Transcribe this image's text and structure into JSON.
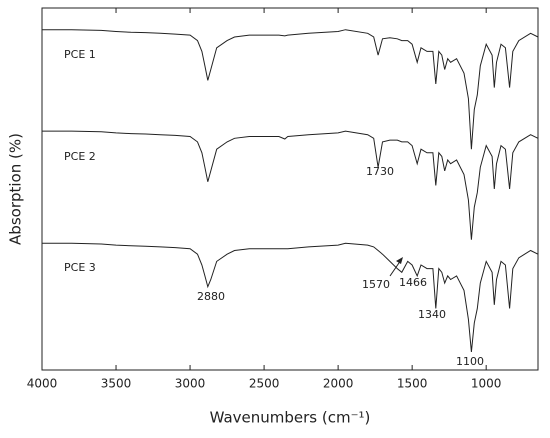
{
  "chart_data": {
    "type": "line",
    "xlabel": "Wavenumbers (cm⁻¹)",
    "ylabel": "Absorption (%)",
    "x": [
      4000,
      3800,
      3600,
      3500,
      3400,
      3300,
      3200,
      3100,
      3000,
      2950,
      2920,
      2900,
      2880,
      2860,
      2820,
      2750,
      2700,
      2600,
      2400,
      2360,
      2340,
      2200,
      2000,
      1950,
      1800,
      1760,
      1730,
      1700,
      1650,
      1600,
      1570,
      1530,
      1500,
      1466,
      1440,
      1400,
      1360,
      1340,
      1320,
      1300,
      1280,
      1260,
      1240,
      1200,
      1150,
      1120,
      1100,
      1080,
      1060,
      1040,
      1000,
      960,
      945,
      930,
      900,
      870,
      842,
      820,
      780,
      700,
      650
    ],
    "series": [
      {
        "name": "PCE 1",
        "color": "#222222",
        "values": [
          94,
          94,
          93.8,
          93.5,
          93.3,
          93.2,
          93,
          92.8,
          92.5,
          91,
          88,
          84,
          80,
          83,
          89,
          91,
          92,
          92.5,
          92.5,
          92.3,
          92.5,
          93,
          93.5,
          94,
          93,
          92,
          87,
          91.5,
          91.8,
          91.5,
          91,
          91,
          90,
          85,
          89,
          88,
          88,
          79,
          88,
          87,
          83,
          86,
          85,
          86,
          82,
          75,
          61,
          72,
          76,
          84,
          90,
          87,
          78,
          85,
          90,
          89,
          78,
          88,
          91,
          93,
          92
        ]
      },
      {
        "name": "PCE 2",
        "color": "#222222",
        "values": [
          66,
          66,
          65.8,
          65.5,
          65.3,
          65.2,
          65,
          64.8,
          64.5,
          63,
          60,
          56,
          52,
          55,
          61,
          63,
          64,
          64.5,
          64.5,
          63.8,
          64.5,
          65,
          65.5,
          66,
          65,
          64,
          56,
          63,
          63.5,
          63.5,
          63,
          63,
          62,
          57,
          61,
          60,
          60,
          51,
          60,
          59,
          55,
          58,
          57,
          58,
          54,
          47,
          36,
          45,
          49,
          56,
          62,
          59,
          50,
          57,
          62,
          61,
          50,
          60,
          63,
          65,
          64
        ]
      },
      {
        "name": "PCE 3",
        "color": "#222222",
        "values": [
          35,
          35,
          34.8,
          34.5,
          34.3,
          34.2,
          34,
          33.8,
          33.5,
          32,
          29,
          26,
          23,
          25,
          30,
          32,
          33,
          33.5,
          33.5,
          33.5,
          33.5,
          34,
          34.5,
          35,
          34.5,
          34,
          33,
          32,
          30,
          28,
          27,
          30,
          29,
          26,
          29,
          28,
          28,
          17,
          28,
          27,
          24,
          26,
          25,
          26,
          22,
          14,
          5,
          13,
          17,
          24,
          30,
          27,
          18,
          25,
          30,
          29,
          17,
          28,
          31,
          33,
          32
        ]
      }
    ],
    "annotations": [
      "2880",
      "1730",
      "1570",
      "1466",
      "1340",
      "1100"
    ],
    "xlim": [
      4000,
      650
    ],
    "ylim": [
      0,
      100
    ],
    "xticks": [
      4000,
      3500,
      3000,
      2500,
      2000,
      1500,
      1000
    ]
  }
}
